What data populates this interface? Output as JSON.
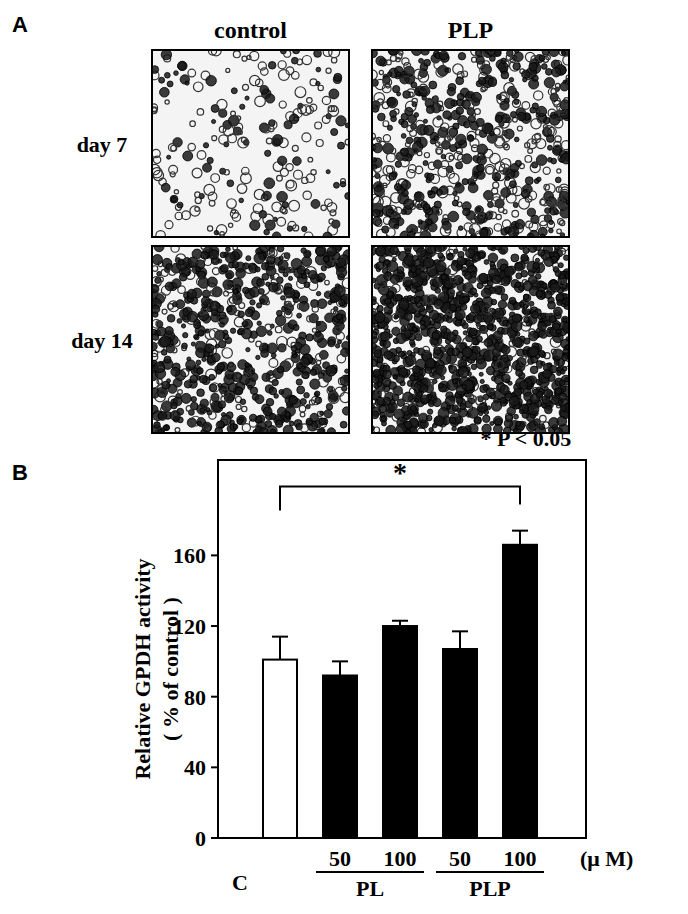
{
  "panel_labels": [
    "A",
    "B"
  ],
  "panel_a": {
    "columns": [
      "control",
      "PLP"
    ],
    "rows": [
      "day 7",
      "day 14"
    ]
  },
  "chart_data": {
    "type": "bar",
    "ylabel_lines": [
      "Relative GPDH activity",
      "( % of control )"
    ],
    "categories": [
      "C",
      "50",
      "100",
      "50",
      "100"
    ],
    "category_groups": [
      null,
      "PL",
      "PL",
      "PLP",
      "PLP"
    ],
    "x_unit": "(μ M)",
    "values": [
      101,
      92,
      120,
      107,
      166
    ],
    "errors": [
      13,
      8,
      3,
      10,
      8
    ],
    "colors": [
      "#ffffff",
      "#000000",
      "#000000",
      "#000000",
      "#000000"
    ],
    "ylim": [
      0,
      214
    ],
    "yticks": [
      0,
      40,
      80,
      120,
      160
    ],
    "grid": false,
    "significance": {
      "text": "*",
      "from": 0,
      "to": 4,
      "y": 199
    },
    "note": "* P < 0.05"
  }
}
